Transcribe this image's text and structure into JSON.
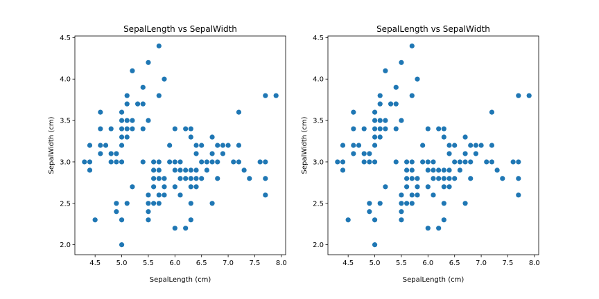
{
  "chart_data": [
    {
      "type": "scatter",
      "title": "SepalLength vs SepalWidth",
      "xlabel": "SepalLength (cm)",
      "ylabel": "SepalWidth (cm)",
      "xlim": [
        4.12,
        8.08
      ],
      "ylim": [
        1.88,
        4.52
      ],
      "xticks": [
        "4.5",
        "5.0",
        "5.5",
        "6.0",
        "6.5",
        "7.0",
        "7.5",
        "8.0"
      ],
      "yticks": [
        "2.0",
        "2.5",
        "3.0",
        "3.5",
        "4.0",
        "4.5"
      ],
      "grid": false,
      "marker_color": "#1f77b4",
      "series": [
        {
          "points": [
            [
              4.3,
              3.0
            ],
            [
              4.4,
              2.9
            ],
            [
              4.4,
              3.0
            ],
            [
              4.4,
              3.2
            ],
            [
              4.5,
              2.3
            ],
            [
              4.6,
              3.1
            ],
            [
              4.6,
              3.2
            ],
            [
              4.6,
              3.4
            ],
            [
              4.6,
              3.6
            ],
            [
              4.7,
              3.2
            ],
            [
              4.8,
              3.0
            ],
            [
              4.8,
              3.1
            ],
            [
              4.8,
              3.4
            ],
            [
              4.9,
              2.4
            ],
            [
              4.9,
              2.5
            ],
            [
              4.9,
              3.0
            ],
            [
              4.9,
              3.1
            ],
            [
              5.0,
              2.0
            ],
            [
              5.0,
              2.3
            ],
            [
              5.0,
              3.0
            ],
            [
              5.0,
              3.2
            ],
            [
              5.0,
              3.3
            ],
            [
              5.0,
              3.4
            ],
            [
              5.0,
              3.5
            ],
            [
              5.0,
              3.6
            ],
            [
              5.1,
              2.5
            ],
            [
              5.1,
              3.3
            ],
            [
              5.1,
              3.4
            ],
            [
              5.1,
              3.5
            ],
            [
              5.1,
              3.7
            ],
            [
              5.1,
              3.8
            ],
            [
              5.2,
              2.7
            ],
            [
              5.2,
              3.4
            ],
            [
              5.2,
              3.5
            ],
            [
              5.2,
              4.1
            ],
            [
              5.3,
              3.7
            ],
            [
              5.4,
              3.0
            ],
            [
              5.4,
              3.4
            ],
            [
              5.4,
              3.7
            ],
            [
              5.4,
              3.9
            ],
            [
              5.5,
              2.3
            ],
            [
              5.5,
              2.4
            ],
            [
              5.5,
              2.5
            ],
            [
              5.5,
              2.6
            ],
            [
              5.5,
              3.5
            ],
            [
              5.5,
              4.2
            ],
            [
              5.6,
              2.5
            ],
            [
              5.6,
              2.7
            ],
            [
              5.6,
              2.8
            ],
            [
              5.6,
              2.9
            ],
            [
              5.6,
              3.0
            ],
            [
              5.7,
              2.5
            ],
            [
              5.7,
              2.6
            ],
            [
              5.7,
              2.8
            ],
            [
              5.7,
              2.9
            ],
            [
              5.7,
              3.0
            ],
            [
              5.7,
              3.8
            ],
            [
              5.7,
              4.4
            ],
            [
              5.8,
              2.6
            ],
            [
              5.8,
              2.7
            ],
            [
              5.8,
              2.8
            ],
            [
              5.8,
              4.0
            ],
            [
              5.9,
              3.0
            ],
            [
              5.9,
              3.2
            ],
            [
              6.0,
              2.2
            ],
            [
              6.0,
              2.7
            ],
            [
              6.0,
              2.9
            ],
            [
              6.0,
              3.0
            ],
            [
              6.0,
              3.4
            ],
            [
              6.1,
              2.6
            ],
            [
              6.1,
              2.8
            ],
            [
              6.1,
              2.9
            ],
            [
              6.1,
              3.0
            ],
            [
              6.2,
              2.2
            ],
            [
              6.2,
              2.8
            ],
            [
              6.2,
              2.9
            ],
            [
              6.2,
              3.4
            ],
            [
              6.3,
              2.3
            ],
            [
              6.3,
              2.5
            ],
            [
              6.3,
              2.7
            ],
            [
              6.3,
              2.8
            ],
            [
              6.3,
              2.9
            ],
            [
              6.3,
              3.3
            ],
            [
              6.3,
              3.4
            ],
            [
              6.4,
              2.7
            ],
            [
              6.4,
              2.8
            ],
            [
              6.4,
              2.9
            ],
            [
              6.4,
              3.1
            ],
            [
              6.4,
              3.2
            ],
            [
              6.5,
              2.8
            ],
            [
              6.5,
              3.0
            ],
            [
              6.5,
              3.2
            ],
            [
              6.6,
              2.9
            ],
            [
              6.6,
              3.0
            ],
            [
              6.7,
              2.5
            ],
            [
              6.7,
              3.0
            ],
            [
              6.7,
              3.1
            ],
            [
              6.7,
              3.3
            ],
            [
              6.8,
              2.8
            ],
            [
              6.8,
              3.0
            ],
            [
              6.8,
              3.2
            ],
            [
              6.9,
              3.1
            ],
            [
              6.9,
              3.2
            ],
            [
              7.0,
              3.2
            ],
            [
              7.1,
              3.0
            ],
            [
              7.2,
              3.0
            ],
            [
              7.2,
              3.2
            ],
            [
              7.2,
              3.6
            ],
            [
              7.3,
              2.9
            ],
            [
              7.4,
              2.8
            ],
            [
              7.6,
              3.0
            ],
            [
              7.7,
              2.6
            ],
            [
              7.7,
              2.8
            ],
            [
              7.7,
              3.0
            ],
            [
              7.7,
              3.8
            ],
            [
              7.9,
              3.8
            ]
          ]
        }
      ]
    },
    {
      "type": "scatter",
      "title": "SepalLength vs SepalWidth",
      "xlabel": "SepalLength (cm)",
      "ylabel": "SepalWidth (cm)",
      "xlim": [
        4.12,
        8.08
      ],
      "ylim": [
        1.88,
        4.52
      ],
      "xticks": [
        "4.5",
        "5.0",
        "5.5",
        "6.0",
        "6.5",
        "7.0",
        "7.5",
        "8.0"
      ],
      "yticks": [
        "2.0",
        "2.5",
        "3.0",
        "3.5",
        "4.0",
        "4.5"
      ],
      "grid": false,
      "marker_color": "#1f77b4",
      "series": [
        {
          "points": [
            [
              4.3,
              3.0
            ],
            [
              4.4,
              2.9
            ],
            [
              4.4,
              3.0
            ],
            [
              4.4,
              3.2
            ],
            [
              4.5,
              2.3
            ],
            [
              4.6,
              3.1
            ],
            [
              4.6,
              3.2
            ],
            [
              4.6,
              3.4
            ],
            [
              4.6,
              3.6
            ],
            [
              4.7,
              3.2
            ],
            [
              4.8,
              3.0
            ],
            [
              4.8,
              3.1
            ],
            [
              4.8,
              3.4
            ],
            [
              4.9,
              2.4
            ],
            [
              4.9,
              2.5
            ],
            [
              4.9,
              3.0
            ],
            [
              4.9,
              3.1
            ],
            [
              5.0,
              2.0
            ],
            [
              5.0,
              2.3
            ],
            [
              5.0,
              3.0
            ],
            [
              5.0,
              3.2
            ],
            [
              5.0,
              3.3
            ],
            [
              5.0,
              3.4
            ],
            [
              5.0,
              3.5
            ],
            [
              5.0,
              3.6
            ],
            [
              5.1,
              2.5
            ],
            [
              5.1,
              3.3
            ],
            [
              5.1,
              3.4
            ],
            [
              5.1,
              3.5
            ],
            [
              5.1,
              3.7
            ],
            [
              5.1,
              3.8
            ],
            [
              5.2,
              2.7
            ],
            [
              5.2,
              3.4
            ],
            [
              5.2,
              3.5
            ],
            [
              5.2,
              4.1
            ],
            [
              5.3,
              3.7
            ],
            [
              5.4,
              3.0
            ],
            [
              5.4,
              3.4
            ],
            [
              5.4,
              3.7
            ],
            [
              5.4,
              3.9
            ],
            [
              5.5,
              2.3
            ],
            [
              5.5,
              2.4
            ],
            [
              5.5,
              2.5
            ],
            [
              5.5,
              2.6
            ],
            [
              5.5,
              3.5
            ],
            [
              5.5,
              4.2
            ],
            [
              5.6,
              2.5
            ],
            [
              5.6,
              2.7
            ],
            [
              5.6,
              2.8
            ],
            [
              5.6,
              2.9
            ],
            [
              5.6,
              3.0
            ],
            [
              5.7,
              2.5
            ],
            [
              5.7,
              2.6
            ],
            [
              5.7,
              2.8
            ],
            [
              5.7,
              2.9
            ],
            [
              5.7,
              3.0
            ],
            [
              5.7,
              3.8
            ],
            [
              5.7,
              4.4
            ],
            [
              5.8,
              2.6
            ],
            [
              5.8,
              2.7
            ],
            [
              5.8,
              2.8
            ],
            [
              5.8,
              4.0
            ],
            [
              5.9,
              3.0
            ],
            [
              5.9,
              3.2
            ],
            [
              6.0,
              2.2
            ],
            [
              6.0,
              2.7
            ],
            [
              6.0,
              2.9
            ],
            [
              6.0,
              3.0
            ],
            [
              6.0,
              3.4
            ],
            [
              6.1,
              2.6
            ],
            [
              6.1,
              2.8
            ],
            [
              6.1,
              2.9
            ],
            [
              6.1,
              3.0
            ],
            [
              6.2,
              2.2
            ],
            [
              6.2,
              2.8
            ],
            [
              6.2,
              2.9
            ],
            [
              6.2,
              3.4
            ],
            [
              6.3,
              2.3
            ],
            [
              6.3,
              2.5
            ],
            [
              6.3,
              2.7
            ],
            [
              6.3,
              2.8
            ],
            [
              6.3,
              2.9
            ],
            [
              6.3,
              3.3
            ],
            [
              6.3,
              3.4
            ],
            [
              6.4,
              2.7
            ],
            [
              6.4,
              2.8
            ],
            [
              6.4,
              2.9
            ],
            [
              6.4,
              3.1
            ],
            [
              6.4,
              3.2
            ],
            [
              6.5,
              2.8
            ],
            [
              6.5,
              3.0
            ],
            [
              6.5,
              3.2
            ],
            [
              6.6,
              2.9
            ],
            [
              6.6,
              3.0
            ],
            [
              6.7,
              2.5
            ],
            [
              6.7,
              3.0
            ],
            [
              6.7,
              3.1
            ],
            [
              6.7,
              3.3
            ],
            [
              6.8,
              2.8
            ],
            [
              6.8,
              3.0
            ],
            [
              6.8,
              3.2
            ],
            [
              6.9,
              3.1
            ],
            [
              6.9,
              3.2
            ],
            [
              7.0,
              3.2
            ],
            [
              7.1,
              3.0
            ],
            [
              7.2,
              3.0
            ],
            [
              7.2,
              3.2
            ],
            [
              7.2,
              3.6
            ],
            [
              7.3,
              2.9
            ],
            [
              7.4,
              2.8
            ],
            [
              7.6,
              3.0
            ],
            [
              7.7,
              2.6
            ],
            [
              7.7,
              2.8
            ],
            [
              7.7,
              3.0
            ],
            [
              7.7,
              3.8
            ],
            [
              7.9,
              3.8
            ]
          ]
        }
      ]
    }
  ]
}
